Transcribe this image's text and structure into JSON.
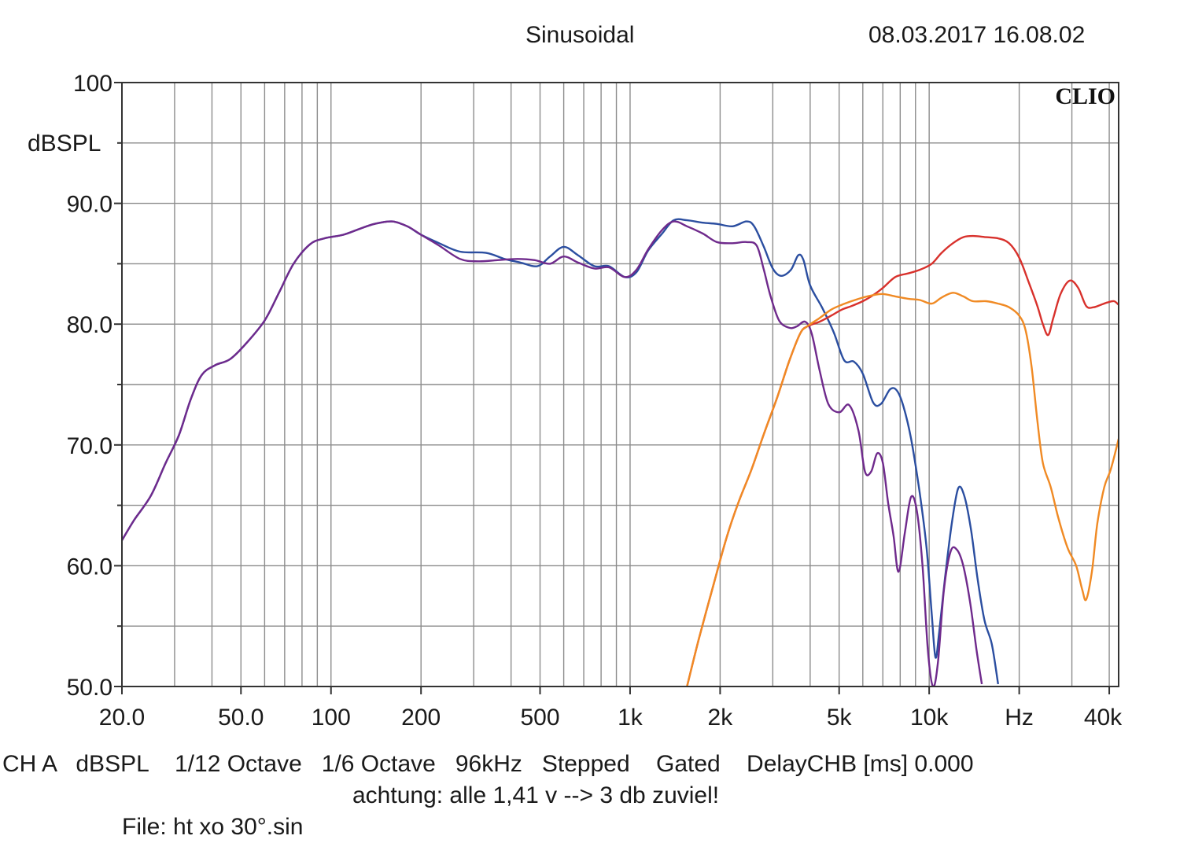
{
  "header": {
    "title": "Sinusoidal",
    "timestamp": "08.03.2017 16.08.02"
  },
  "footer": {
    "settings": "CH A   dBSPL    1/12 Octave   1/6 Octave   96kHz   Stepped    Gated    DelayCHB [ms] 0.000",
    "note": "achtung: alle 1,41 v --> 3 db zuviel!",
    "file": "File: ht xo 30°.sin"
  },
  "chart_data": {
    "type": "line",
    "title": "Sinusoidal",
    "brand": "CLIO",
    "xlabel": "Hz",
    "ylabel": "dBSPL",
    "xscale": "log",
    "xlim": [
      20,
      43000
    ],
    "ylim": [
      50,
      100
    ],
    "grid": true,
    "x_ticks": [
      {
        "v": 20,
        "label": "20.0"
      },
      {
        "v": 50,
        "label": "50.0"
      },
      {
        "v": 100,
        "label": "100"
      },
      {
        "v": 200,
        "label": "200"
      },
      {
        "v": 500,
        "label": "500"
      },
      {
        "v": 1000,
        "label": "1k"
      },
      {
        "v": 2000,
        "label": "2k"
      },
      {
        "v": 5000,
        "label": "5k"
      },
      {
        "v": 10000,
        "label": "10k"
      },
      {
        "v": 20000,
        "label": "Hz"
      },
      {
        "v": 40000,
        "label": "40k"
      }
    ],
    "y_ticks": [
      {
        "v": 100,
        "label": "100"
      },
      {
        "v": 90,
        "label": "90.0"
      },
      {
        "v": 80,
        "label": "80.0"
      },
      {
        "v": 70,
        "label": "70.0"
      },
      {
        "v": 60,
        "label": "60.0"
      },
      {
        "v": 50,
        "label": "50.0"
      }
    ],
    "series": [
      {
        "color": "#2b4ea0",
        "points": [
          [
            20,
            62.1
          ],
          [
            22,
            63.8
          ],
          [
            25,
            65.8
          ],
          [
            28,
            68.5
          ],
          [
            31,
            70.8
          ],
          [
            34,
            73.8
          ],
          [
            37,
            75.8
          ],
          [
            41,
            76.6
          ],
          [
            46,
            77.1
          ],
          [
            52,
            78.4
          ],
          [
            60,
            80.3
          ],
          [
            67,
            82.6
          ],
          [
            75,
            85.0
          ],
          [
            85,
            86.6
          ],
          [
            95,
            87.1
          ],
          [
            110,
            87.4
          ],
          [
            125,
            87.9
          ],
          [
            140,
            88.3
          ],
          [
            160,
            88.5
          ],
          [
            180,
            88.1
          ],
          [
            200,
            87.4
          ],
          [
            230,
            86.7
          ],
          [
            270,
            86.0
          ],
          [
            330,
            85.9
          ],
          [
            380,
            85.4
          ],
          [
            430,
            85.1
          ],
          [
            490,
            84.8
          ],
          [
            540,
            85.6
          ],
          [
            600,
            86.4
          ],
          [
            670,
            85.7
          ],
          [
            760,
            84.8
          ],
          [
            850,
            84.8
          ],
          [
            960,
            83.9
          ],
          [
            1050,
            84.3
          ],
          [
            1150,
            86.1
          ],
          [
            1280,
            87.5
          ],
          [
            1400,
            88.6
          ],
          [
            1550,
            88.6
          ],
          [
            1750,
            88.4
          ],
          [
            1950,
            88.3
          ],
          [
            2200,
            88.1
          ],
          [
            2450,
            88.5
          ],
          [
            2600,
            88.1
          ],
          [
            2800,
            86.4
          ],
          [
            3000,
            84.6
          ],
          [
            3200,
            84.0
          ],
          [
            3450,
            84.5
          ],
          [
            3650,
            85.7
          ],
          [
            3800,
            85.3
          ],
          [
            4000,
            83.2
          ],
          [
            4400,
            81.3
          ],
          [
            4800,
            79.3
          ],
          [
            5200,
            77.0
          ],
          [
            5600,
            76.9
          ],
          [
            6000,
            75.9
          ],
          [
            6500,
            73.5
          ],
          [
            6900,
            73.4
          ],
          [
            7400,
            74.6
          ],
          [
            7800,
            74.5
          ],
          [
            8200,
            73.2
          ],
          [
            8700,
            70.5
          ],
          [
            9300,
            66.0
          ],
          [
            9800,
            61.5
          ],
          [
            10200,
            56.0
          ],
          [
            10500,
            52.4
          ],
          [
            10800,
            54.5
          ],
          [
            11300,
            59.0
          ],
          [
            11900,
            63.5
          ],
          [
            12500,
            66.4
          ],
          [
            13100,
            65.8
          ],
          [
            13800,
            63.0
          ],
          [
            14500,
            59.0
          ],
          [
            15300,
            55.5
          ],
          [
            16200,
            53.5
          ],
          [
            17000,
            50.2
          ]
        ]
      },
      {
        "color": "#6f2a8c",
        "points": [
          [
            20,
            62.1
          ],
          [
            22,
            63.8
          ],
          [
            25,
            65.8
          ],
          [
            28,
            68.5
          ],
          [
            31,
            70.8
          ],
          [
            34,
            73.8
          ],
          [
            37,
            75.8
          ],
          [
            41,
            76.6
          ],
          [
            46,
            77.1
          ],
          [
            52,
            78.4
          ],
          [
            60,
            80.3
          ],
          [
            67,
            82.6
          ],
          [
            75,
            85.0
          ],
          [
            85,
            86.6
          ],
          [
            95,
            87.1
          ],
          [
            110,
            87.4
          ],
          [
            125,
            87.9
          ],
          [
            140,
            88.3
          ],
          [
            160,
            88.5
          ],
          [
            180,
            88.1
          ],
          [
            200,
            87.4
          ],
          [
            230,
            86.5
          ],
          [
            270,
            85.4
          ],
          [
            310,
            85.2
          ],
          [
            360,
            85.3
          ],
          [
            420,
            85.4
          ],
          [
            480,
            85.3
          ],
          [
            540,
            85.0
          ],
          [
            600,
            85.6
          ],
          [
            670,
            85.1
          ],
          [
            760,
            84.6
          ],
          [
            850,
            84.7
          ],
          [
            960,
            83.9
          ],
          [
            1050,
            84.5
          ],
          [
            1150,
            86.2
          ],
          [
            1280,
            87.8
          ],
          [
            1400,
            88.5
          ],
          [
            1550,
            88.1
          ],
          [
            1750,
            87.5
          ],
          [
            1950,
            86.8
          ],
          [
            2200,
            86.7
          ],
          [
            2450,
            86.8
          ],
          [
            2650,
            86.5
          ],
          [
            2800,
            84.5
          ],
          [
            2950,
            82.3
          ],
          [
            3150,
            80.3
          ],
          [
            3400,
            79.7
          ],
          [
            3600,
            79.8
          ],
          [
            3850,
            80.2
          ],
          [
            4050,
            79.2
          ],
          [
            4300,
            76.2
          ],
          [
            4600,
            73.4
          ],
          [
            5000,
            72.7
          ],
          [
            5400,
            73.3
          ],
          [
            5800,
            71.2
          ],
          [
            6100,
            67.8
          ],
          [
            6400,
            67.8
          ],
          [
            6700,
            69.3
          ],
          [
            7000,
            68.5
          ],
          [
            7300,
            65.1
          ],
          [
            7600,
            62.5
          ],
          [
            7900,
            59.5
          ],
          [
            8300,
            62.8
          ],
          [
            8700,
            65.7
          ],
          [
            9100,
            64.5
          ],
          [
            9500,
            60.0
          ],
          [
            9900,
            53.0
          ],
          [
            10300,
            50.0
          ],
          [
            10700,
            52.0
          ],
          [
            11200,
            58.0
          ],
          [
            11800,
            61.2
          ],
          [
            12400,
            61.3
          ],
          [
            13000,
            60.0
          ],
          [
            13700,
            57.0
          ],
          [
            14400,
            53.0
          ],
          [
            15000,
            50.2
          ]
        ]
      },
      {
        "color": "#d8312c",
        "points": [
          [
            1550,
            50.0
          ],
          [
            1700,
            54.0
          ],
          [
            1900,
            58.4
          ],
          [
            2100,
            62.3
          ],
          [
            2300,
            65.2
          ],
          [
            2550,
            68.0
          ],
          [
            2800,
            70.9
          ],
          [
            3100,
            73.9
          ],
          [
            3400,
            76.9
          ],
          [
            3700,
            79.2
          ],
          [
            3900,
            79.8
          ],
          [
            4300,
            80.2
          ],
          [
            4700,
            80.7
          ],
          [
            5100,
            81.2
          ],
          [
            5500,
            81.5
          ],
          [
            6000,
            81.9
          ],
          [
            6500,
            82.4
          ],
          [
            7000,
            83.0
          ],
          [
            7700,
            83.9
          ],
          [
            8500,
            84.2
          ],
          [
            9300,
            84.5
          ],
          [
            10200,
            85.0
          ],
          [
            11000,
            85.9
          ],
          [
            12000,
            86.7
          ],
          [
            13000,
            87.2
          ],
          [
            14000,
            87.3
          ],
          [
            15500,
            87.2
          ],
          [
            17000,
            87.1
          ],
          [
            18500,
            86.7
          ],
          [
            20000,
            85.5
          ],
          [
            21500,
            83.5
          ],
          [
            23000,
            81.5
          ],
          [
            24000,
            80.0
          ],
          [
            25000,
            79.1
          ],
          [
            26000,
            80.5
          ],
          [
            27500,
            82.5
          ],
          [
            29500,
            83.6
          ],
          [
            31500,
            83.0
          ],
          [
            33500,
            81.5
          ],
          [
            35500,
            81.4
          ],
          [
            37500,
            81.6
          ],
          [
            39500,
            81.8
          ],
          [
            41500,
            81.9
          ],
          [
            43000,
            81.6
          ]
        ]
      },
      {
        "color": "#f08a24",
        "points": [
          [
            1550,
            50.0
          ],
          [
            1700,
            54.0
          ],
          [
            1900,
            58.4
          ],
          [
            2100,
            62.3
          ],
          [
            2300,
            65.2
          ],
          [
            2550,
            68.0
          ],
          [
            2800,
            70.9
          ],
          [
            3100,
            73.9
          ],
          [
            3400,
            76.9
          ],
          [
            3700,
            79.2
          ],
          [
            3900,
            79.8
          ],
          [
            4300,
            80.5
          ],
          [
            4700,
            81.2
          ],
          [
            5100,
            81.6
          ],
          [
            5500,
            81.9
          ],
          [
            6000,
            82.2
          ],
          [
            6500,
            82.4
          ],
          [
            7000,
            82.5
          ],
          [
            7700,
            82.3
          ],
          [
            8500,
            82.1
          ],
          [
            9300,
            82.0
          ],
          [
            10200,
            81.7
          ],
          [
            11000,
            82.2
          ],
          [
            12000,
            82.6
          ],
          [
            13000,
            82.3
          ],
          [
            14000,
            81.9
          ],
          [
            15500,
            81.9
          ],
          [
            17000,
            81.7
          ],
          [
            18500,
            81.4
          ],
          [
            20000,
            80.7
          ],
          [
            21000,
            79.5
          ],
          [
            22000,
            76.5
          ],
          [
            23000,
            72.0
          ],
          [
            24000,
            68.5
          ],
          [
            25500,
            66.5
          ],
          [
            27000,
            64.0
          ],
          [
            29000,
            61.5
          ],
          [
            31000,
            60.0
          ],
          [
            32500,
            58.0
          ],
          [
            33500,
            57.2
          ],
          [
            35000,
            59.5
          ],
          [
            36500,
            63.5
          ],
          [
            38500,
            66.5
          ],
          [
            40500,
            68.0
          ],
          [
            43000,
            70.5
          ]
        ]
      }
    ]
  }
}
